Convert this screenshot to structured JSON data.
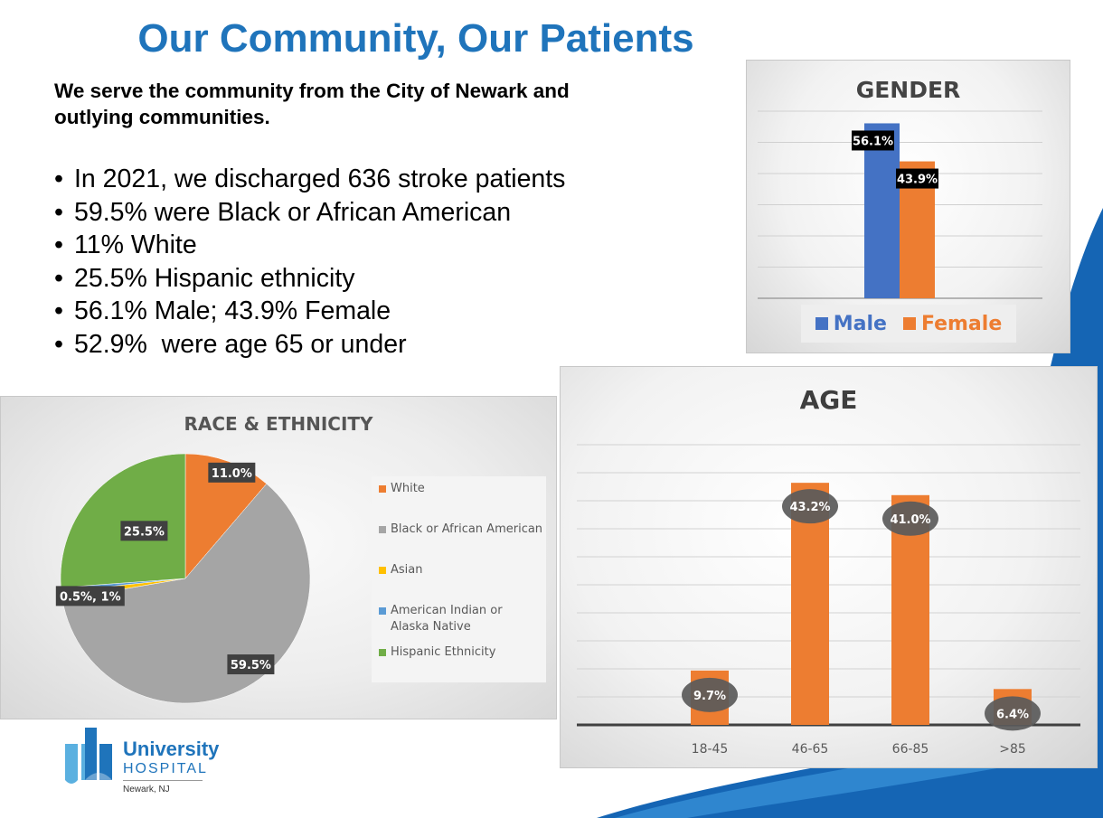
{
  "slide": {
    "title": "Our Community, Our Patients",
    "intro": "We serve the community from the City of Newark and outlying communities.",
    "bullets": [
      "In 2021, we discharged 636 stroke patients",
      "59.5% were Black or African American",
      "11% White",
      "25.5% Hispanic ethnicity",
      "56.1% Male; 43.9% Female",
      "52.9%  were age 65 or under"
    ]
  },
  "logo": {
    "name": "University",
    "sub": "HOSPITAL",
    "location": "Newark, NJ"
  },
  "colors": {
    "title_blue": "#1f74bb",
    "male_blue": "#4472c4",
    "orange": "#ed7d31",
    "gray": "#a5a5a5",
    "gold": "#ffc000",
    "light_blue": "#5b9bd5",
    "green": "#70ad47",
    "dark_blue": "#1565b4"
  },
  "chart_data": [
    {
      "type": "bar",
      "title": "GENDER",
      "categories": [
        ""
      ],
      "series": [
        {
          "name": "Male",
          "values": [
            56.1
          ],
          "labels": [
            "56.1%"
          ],
          "color": "#4472c4"
        },
        {
          "name": "Female",
          "values": [
            43.9
          ],
          "labels": [
            "43.9%"
          ],
          "color": "#ed7d31"
        }
      ],
      "ylim": [
        0,
        60
      ],
      "grid": true,
      "legend": "bottom"
    },
    {
      "type": "pie",
      "title": "RACE & ETHNICITY",
      "slices": [
        {
          "name": "White",
          "value": 11.0,
          "label": "11.0%",
          "color": "#ed7d31"
        },
        {
          "name": "Black or African American",
          "value": 59.5,
          "label": "59.5%",
          "color": "#a5a5a5"
        },
        {
          "name": "Asian",
          "value": 1.0,
          "label": "0.5%, 1%",
          "color": "#ffc000"
        },
        {
          "name": "American Indian or Alaska Native",
          "value": 0.5,
          "label": "",
          "color": "#5b9bd5"
        },
        {
          "name": "Hispanic Ethnicity",
          "value": 25.5,
          "label": "25.5%",
          "color": "#70ad47"
        }
      ],
      "legend": "right"
    },
    {
      "type": "bar",
      "title": "AGE",
      "categories": [
        "18-45",
        "46-65",
        "66-85",
        ">85"
      ],
      "values": [
        9.7,
        43.2,
        41.0,
        6.4
      ],
      "labels": [
        "9.7%",
        "43.2%",
        "41.0%",
        "6.4%"
      ],
      "color": "#ed7d31",
      "ylim": [
        0,
        50
      ],
      "grid": true
    }
  ]
}
